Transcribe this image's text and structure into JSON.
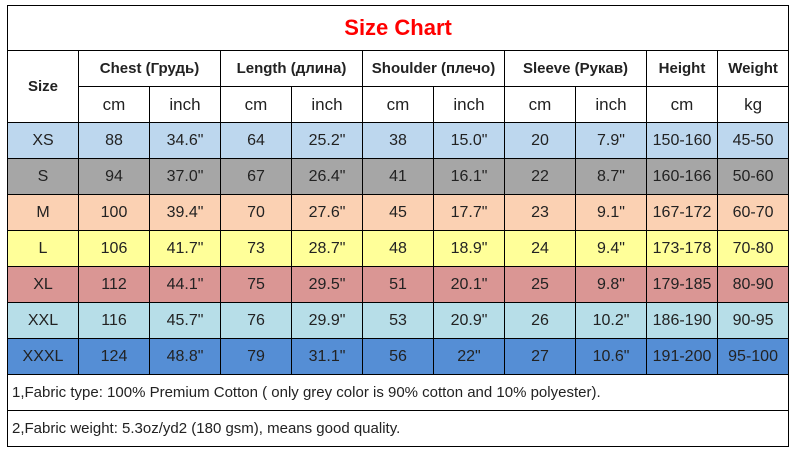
{
  "title": "Size Chart",
  "headers": {
    "size": "Size",
    "chest": "Chest  (Грудь)",
    "length": "Length (длина)",
    "shoulder": "Shoulder (плечо)",
    "sleeve": "Sleeve (Рукав)",
    "height": "Height",
    "weight": "Weight"
  },
  "units": [
    "cm",
    "inch",
    "cm",
    "inch",
    "cm",
    "inch",
    "cm",
    "inch",
    "cm",
    "kg"
  ],
  "rows": [
    {
      "size": "XS",
      "color": "#bdd7ee",
      "values": [
        "88",
        "34.6\"",
        "64",
        "25.2\"",
        "38",
        "15.0\"",
        "20",
        "7.9\"",
        "150-160",
        "45-50"
      ]
    },
    {
      "size": "S",
      "color": "#a6a6a6",
      "values": [
        "94",
        "37.0\"",
        "67",
        "26.4\"",
        "41",
        "16.1\"",
        "22",
        "8.7\"",
        "160-166",
        "50-60"
      ]
    },
    {
      "size": "M",
      "color": "#fbd1b3",
      "values": [
        "100",
        "39.4\"",
        "70",
        "27.6\"",
        "45",
        "17.7\"",
        "23",
        "9.1\"",
        "167-172",
        "60-70"
      ]
    },
    {
      "size": "L",
      "color": "#ffff99",
      "values": [
        "106",
        "41.7\"",
        "73",
        "28.7\"",
        "48",
        "18.9\"",
        "24",
        "9.4\"",
        "173-178",
        "70-80"
      ]
    },
    {
      "size": "XL",
      "color": "#da9694",
      "values": [
        "112",
        "44.1\"",
        "75",
        "29.5\"",
        "51",
        "20.1\"",
        "25",
        "9.8\"",
        "179-185",
        "80-90"
      ]
    },
    {
      "size": "XXL",
      "color": "#b7dee8",
      "values": [
        "116",
        "45.7\"",
        "76",
        "29.9\"",
        "53",
        "20.9\"",
        "26",
        "10.2\"",
        "186-190",
        "90-95"
      ]
    },
    {
      "size": "XXXL",
      "color": "#558ed5",
      "values": [
        "124",
        "48.8\"",
        "79",
        "31.1\"",
        "56",
        "22\"",
        "27",
        "10.6\"",
        "191-200",
        "95-100"
      ]
    }
  ],
  "notes": [
    "1,Fabric type: 100% Premium Cotton ( only grey color is 90% cotton and 10% polyester).",
    "2,Fabric weight: 5.3oz/yd2 (180 gsm), means good quality."
  ]
}
